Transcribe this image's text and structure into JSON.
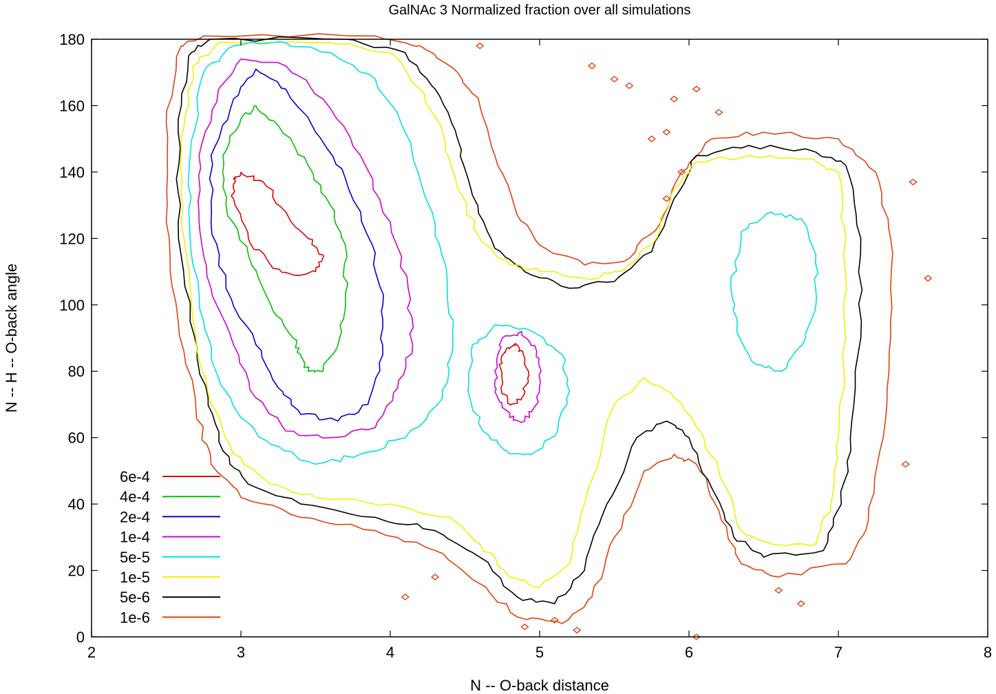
{
  "chart_data": {
    "type": "contour",
    "title": "GalNAc 3 Normalized fraction over all simulations",
    "xlabel": "N -- O-back distance",
    "ylabel": "N -- H -- O-back angle",
    "xlim": [
      2,
      8
    ],
    "ylim": [
      0,
      180
    ],
    "xticks": [
      2,
      3,
      4,
      5,
      6,
      7,
      8
    ],
    "yticks": [
      0,
      20,
      40,
      60,
      80,
      100,
      120,
      140,
      160,
      180
    ],
    "xtick_labels": [
      "2",
      "3",
      "4",
      "5",
      "6",
      "7",
      "8"
    ],
    "ytick_labels": [
      "0",
      "20",
      "40",
      "60",
      "80",
      "100",
      "120",
      "140",
      "160",
      "180"
    ],
    "grid": false,
    "legend_position": "bottom-left",
    "levels": [
      {
        "name": "6e-4",
        "value": 0.0006,
        "color": "#e00000"
      },
      {
        "name": "4e-4",
        "value": 0.0004,
        "color": "#00c000"
      },
      {
        "name": "2e-4",
        "value": 0.0002,
        "color": "#0000d0"
      },
      {
        "name": "1e-4",
        "value": 0.0001,
        "color": "#d000d0"
      },
      {
        "name": "5e-5",
        "value": 5e-05,
        "color": "#00e0e0"
      },
      {
        "name": "1e-5",
        "value": 1e-05,
        "color": "#f0f000"
      },
      {
        "name": "5e-6",
        "value": 5e-06,
        "color": "#000000"
      },
      {
        "name": "1e-6",
        "value": 1e-06,
        "color": "#e04010"
      }
    ],
    "contours": [
      {
        "level": "6e-4",
        "path": [
          [
            3.0,
            140
          ],
          [
            3.15,
            137
          ],
          [
            3.3,
            128
          ],
          [
            3.45,
            120
          ],
          [
            3.55,
            115
          ],
          [
            3.5,
            110
          ],
          [
            3.35,
            109
          ],
          [
            3.2,
            112
          ],
          [
            3.05,
            120
          ],
          [
            2.95,
            132
          ],
          [
            2.95,
            138
          ],
          [
            3.0,
            140
          ]
        ]
      },
      {
        "level": "6e-4",
        "path": [
          [
            4.85,
            88
          ],
          [
            4.9,
            84
          ],
          [
            4.92,
            78
          ],
          [
            4.88,
            72
          ],
          [
            4.8,
            70
          ],
          [
            4.74,
            75
          ],
          [
            4.73,
            82
          ],
          [
            4.78,
            87
          ],
          [
            4.85,
            88
          ]
        ]
      },
      {
        "level": "4e-4",
        "path": [
          [
            3.0,
            156
          ],
          [
            3.1,
            160
          ],
          [
            3.25,
            154
          ],
          [
            3.45,
            142
          ],
          [
            3.6,
            130
          ],
          [
            3.7,
            118
          ],
          [
            3.7,
            100
          ],
          [
            3.65,
            88
          ],
          [
            3.55,
            80
          ],
          [
            3.45,
            80
          ],
          [
            3.4,
            85
          ],
          [
            3.35,
            90
          ],
          [
            3.2,
            100
          ],
          [
            3.05,
            115
          ],
          [
            2.9,
            130
          ],
          [
            2.88,
            145
          ],
          [
            3.0,
            156
          ]
        ]
      },
      {
        "level": "2e-4",
        "path": [
          [
            2.95,
            162
          ],
          [
            3.1,
            171
          ],
          [
            3.3,
            165
          ],
          [
            3.5,
            152
          ],
          [
            3.7,
            138
          ],
          [
            3.88,
            118
          ],
          [
            3.95,
            100
          ],
          [
            3.95,
            85
          ],
          [
            3.85,
            70
          ],
          [
            3.65,
            65
          ],
          [
            3.4,
            67
          ],
          [
            3.25,
            75
          ],
          [
            3.1,
            88
          ],
          [
            2.9,
            105
          ],
          [
            2.8,
            125
          ],
          [
            2.8,
            145
          ],
          [
            2.95,
            162
          ]
        ]
      },
      {
        "level": "1e-4",
        "path": [
          [
            2.85,
            165
          ],
          [
            3.0,
            174
          ],
          [
            3.3,
            172
          ],
          [
            3.55,
            162
          ],
          [
            3.8,
            145
          ],
          [
            4.0,
            125
          ],
          [
            4.12,
            105
          ],
          [
            4.15,
            88
          ],
          [
            4.05,
            75
          ],
          [
            3.9,
            63
          ],
          [
            3.6,
            60
          ],
          [
            3.3,
            62
          ],
          [
            3.1,
            72
          ],
          [
            2.95,
            88
          ],
          [
            2.8,
            105
          ],
          [
            2.72,
            125
          ],
          [
            2.72,
            145
          ],
          [
            2.85,
            165
          ]
        ]
      },
      {
        "level": "1e-4",
        "path": [
          [
            4.75,
            90
          ],
          [
            4.88,
            92
          ],
          [
            4.98,
            86
          ],
          [
            5.0,
            78
          ],
          [
            4.98,
            70
          ],
          [
            4.9,
            65
          ],
          [
            4.8,
            66
          ],
          [
            4.72,
            72
          ],
          [
            4.7,
            80
          ],
          [
            4.75,
            90
          ]
        ]
      },
      {
        "level": "5e-5",
        "path": [
          [
            2.75,
            170
          ],
          [
            2.95,
            178
          ],
          [
            3.3,
            179
          ],
          [
            3.6,
            176
          ],
          [
            3.9,
            168
          ],
          [
            4.1,
            152
          ],
          [
            4.28,
            128
          ],
          [
            4.38,
            108
          ],
          [
            4.42,
            88
          ],
          [
            4.35,
            72
          ],
          [
            4.1,
            60
          ],
          [
            3.8,
            55
          ],
          [
            3.5,
            52
          ],
          [
            3.2,
            58
          ],
          [
            3.0,
            66
          ],
          [
            2.85,
            78
          ],
          [
            2.75,
            95
          ],
          [
            2.66,
            120
          ],
          [
            2.66,
            145
          ],
          [
            2.75,
            170
          ]
        ]
      },
      {
        "level": "5e-5",
        "path": [
          [
            4.55,
            88
          ],
          [
            4.7,
            94
          ],
          [
            4.95,
            92
          ],
          [
            5.15,
            85
          ],
          [
            5.2,
            74
          ],
          [
            5.12,
            62
          ],
          [
            4.95,
            55
          ],
          [
            4.78,
            56
          ],
          [
            4.62,
            62
          ],
          [
            4.52,
            74
          ],
          [
            4.55,
            88
          ]
        ]
      },
      {
        "level": "5e-5",
        "path": [
          [
            6.35,
            122
          ],
          [
            6.55,
            128
          ],
          [
            6.75,
            126
          ],
          [
            6.85,
            115
          ],
          [
            6.85,
            100
          ],
          [
            6.78,
            90
          ],
          [
            6.62,
            80
          ],
          [
            6.45,
            82
          ],
          [
            6.32,
            92
          ],
          [
            6.28,
            105
          ],
          [
            6.35,
            122
          ]
        ]
      },
      {
        "level": "1e-5",
        "path": [
          [
            2.68,
            172
          ],
          [
            2.85,
            179
          ],
          [
            3.6,
            179
          ],
          [
            4.0,
            176
          ],
          [
            4.2,
            165
          ],
          [
            4.35,
            152
          ],
          [
            4.45,
            135
          ],
          [
            4.6,
            120
          ],
          [
            4.8,
            112
          ],
          [
            5.0,
            110
          ],
          [
            5.3,
            108
          ],
          [
            5.55,
            110
          ],
          [
            5.75,
            118
          ],
          [
            5.9,
            135
          ],
          [
            6.05,
            143
          ],
          [
            6.4,
            145
          ],
          [
            6.8,
            144
          ],
          [
            7.0,
            140
          ],
          [
            7.05,
            120
          ],
          [
            7.05,
            90
          ],
          [
            7.0,
            60
          ],
          [
            6.95,
            40
          ],
          [
            6.85,
            28
          ],
          [
            6.55,
            28
          ],
          [
            6.35,
            32
          ],
          [
            6.25,
            45
          ],
          [
            6.1,
            60
          ],
          [
            5.9,
            72
          ],
          [
            5.7,
            78
          ],
          [
            5.5,
            70
          ],
          [
            5.3,
            40
          ],
          [
            5.2,
            22
          ],
          [
            5.0,
            15
          ],
          [
            4.8,
            18
          ],
          [
            4.6,
            28
          ],
          [
            4.4,
            36
          ],
          [
            4.0,
            40
          ],
          [
            3.5,
            42
          ],
          [
            3.2,
            46
          ],
          [
            2.95,
            55
          ],
          [
            2.8,
            70
          ],
          [
            2.68,
            95
          ],
          [
            2.6,
            125
          ],
          [
            2.6,
            150
          ],
          [
            2.68,
            172
          ]
        ]
      },
      {
        "level": "5e-6",
        "path": [
          [
            2.65,
            175
          ],
          [
            2.8,
            180
          ],
          [
            3.7,
            180
          ],
          [
            4.1,
            176
          ],
          [
            4.3,
            165
          ],
          [
            4.45,
            150
          ],
          [
            4.55,
            133
          ],
          [
            4.7,
            117
          ],
          [
            4.9,
            110
          ],
          [
            5.2,
            105
          ],
          [
            5.5,
            107
          ],
          [
            5.75,
            116
          ],
          [
            5.9,
            132
          ],
          [
            6.05,
            145
          ],
          [
            6.4,
            148
          ],
          [
            6.85,
            146
          ],
          [
            7.05,
            142
          ],
          [
            7.15,
            120
          ],
          [
            7.15,
            90
          ],
          [
            7.08,
            60
          ],
          [
            7.02,
            40
          ],
          [
            6.9,
            26
          ],
          [
            6.5,
            24
          ],
          [
            6.3,
            30
          ],
          [
            6.15,
            45
          ],
          [
            6.0,
            60
          ],
          [
            5.85,
            65
          ],
          [
            5.65,
            60
          ],
          [
            5.45,
            40
          ],
          [
            5.3,
            20
          ],
          [
            5.1,
            10
          ],
          [
            4.85,
            12
          ],
          [
            4.6,
            24
          ],
          [
            4.3,
            32
          ],
          [
            3.9,
            36
          ],
          [
            3.4,
            40
          ],
          [
            3.05,
            46
          ],
          [
            2.88,
            56
          ],
          [
            2.78,
            72
          ],
          [
            2.66,
            95
          ],
          [
            2.58,
            125
          ],
          [
            2.58,
            152
          ],
          [
            2.65,
            175
          ]
        ]
      },
      {
        "level": "1e-6",
        "path": [
          [
            2.6,
            178
          ],
          [
            2.75,
            181
          ],
          [
            3.9,
            181
          ],
          [
            4.2,
            178
          ],
          [
            4.45,
            170
          ],
          [
            4.6,
            160
          ],
          [
            4.7,
            145
          ],
          [
            4.85,
            127
          ],
          [
            5.0,
            118
          ],
          [
            5.3,
            112
          ],
          [
            5.6,
            114
          ],
          [
            5.8,
            124
          ],
          [
            5.95,
            140
          ],
          [
            6.15,
            150
          ],
          [
            6.5,
            152
          ],
          [
            7.0,
            150
          ],
          [
            7.25,
            140
          ],
          [
            7.35,
            120
          ],
          [
            7.35,
            90
          ],
          [
            7.3,
            60
          ],
          [
            7.2,
            35
          ],
          [
            7.05,
            22
          ],
          [
            6.6,
            18
          ],
          [
            6.35,
            22
          ],
          [
            6.2,
            38
          ],
          [
            6.05,
            52
          ],
          [
            5.9,
            55
          ],
          [
            5.7,
            50
          ],
          [
            5.5,
            30
          ],
          [
            5.35,
            12
          ],
          [
            5.15,
            4
          ],
          [
            4.85,
            6
          ],
          [
            4.6,
            16
          ],
          [
            4.3,
            26
          ],
          [
            3.9,
            32
          ],
          [
            3.4,
            36
          ],
          [
            3.0,
            42
          ],
          [
            2.8,
            52
          ],
          [
            2.7,
            68
          ],
          [
            2.58,
            95
          ],
          [
            2.5,
            125
          ],
          [
            2.5,
            155
          ],
          [
            2.6,
            178
          ]
        ]
      }
    ],
    "scatter_islands": {
      "level": "1e-6",
      "points": [
        [
          4.6,
          178
        ],
        [
          5.35,
          172
        ],
        [
          5.5,
          168
        ],
        [
          5.6,
          166
        ],
        [
          5.9,
          162
        ],
        [
          6.05,
          165
        ],
        [
          6.2,
          158
        ],
        [
          5.75,
          150
        ],
        [
          5.85,
          152
        ],
        [
          4.1,
          12
        ],
        [
          5.1,
          5
        ],
        [
          6.05,
          0
        ],
        [
          7.45,
          52
        ],
        [
          7.6,
          108
        ],
        [
          7.5,
          137
        ],
        [
          5.85,
          132
        ],
        [
          5.95,
          140
        ],
        [
          4.3,
          18
        ],
        [
          6.6,
          14
        ],
        [
          6.75,
          10
        ],
        [
          5.25,
          2
        ],
        [
          4.9,
          3
        ]
      ]
    },
    "legend_entries": [
      "6e-4",
      "4e-4",
      "2e-4",
      "1e-4",
      "5e-5",
      "1e-5",
      "5e-6",
      "1e-6"
    ]
  }
}
